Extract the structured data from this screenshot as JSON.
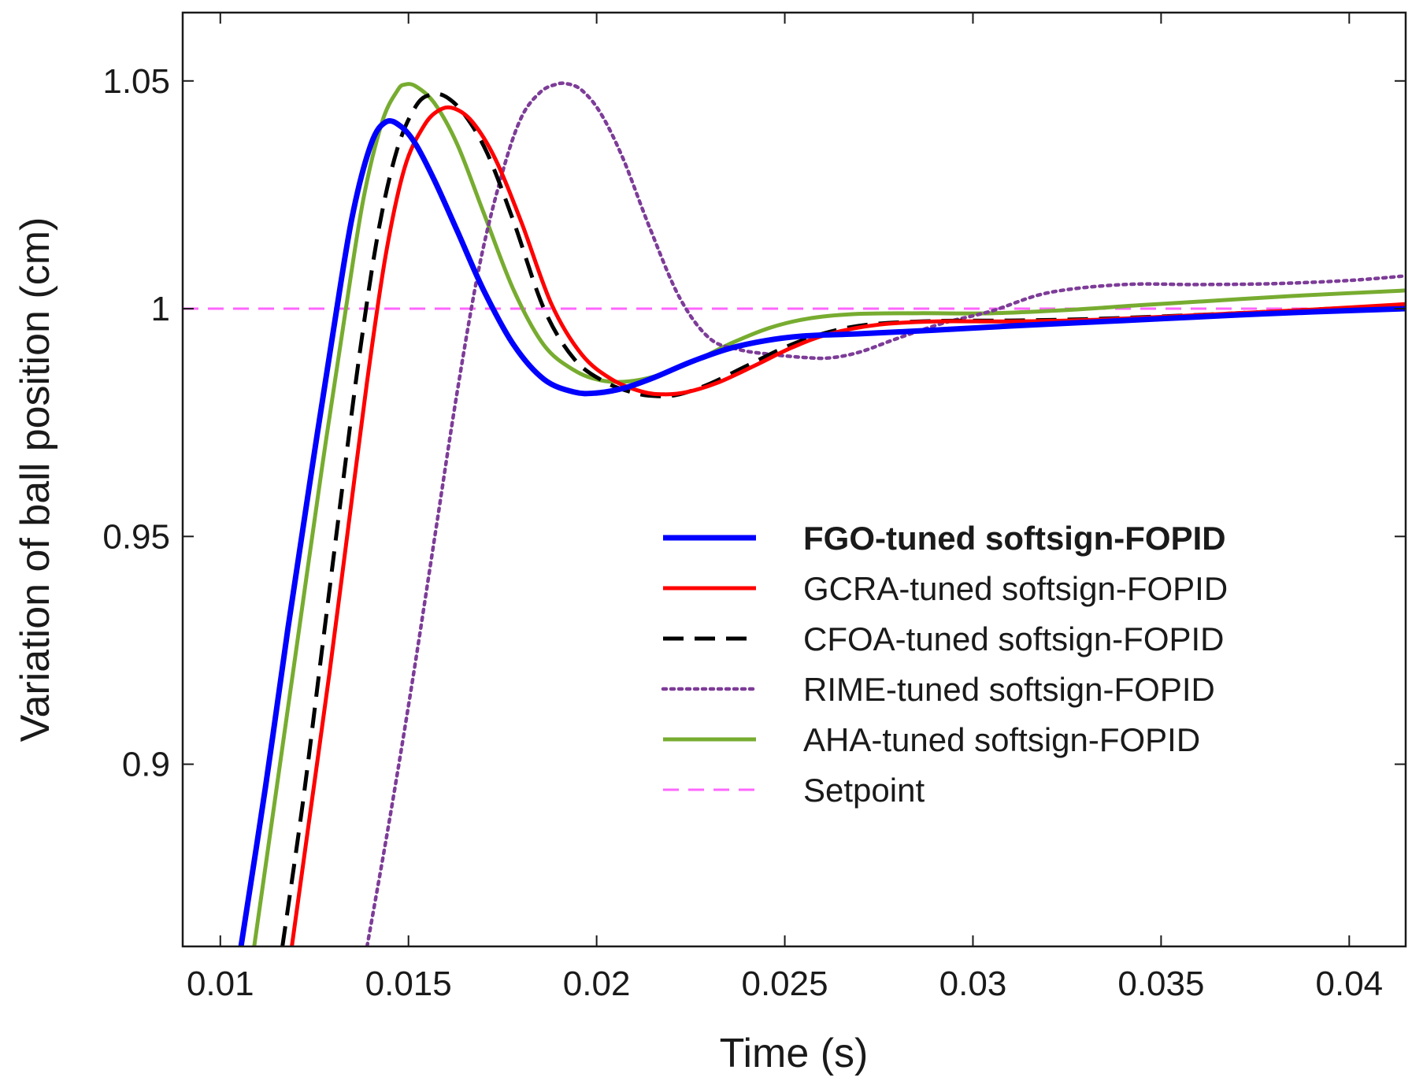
{
  "chart_data": {
    "type": "line",
    "title": "",
    "xlabel": "Time (s)",
    "ylabel": "Variation of ball position (cm)",
    "xlim": [
      0.009,
      0.0415
    ],
    "ylim": [
      0.86,
      1.065
    ],
    "xticks": [
      0.01,
      0.015,
      0.02,
      0.025,
      0.03,
      0.035,
      0.04
    ],
    "xtick_labels": [
      "0.01",
      "0.015",
      "0.02",
      "0.025",
      "0.03",
      "0.035",
      "0.04"
    ],
    "yticks": [
      0.9,
      0.95,
      1.0,
      1.05
    ],
    "ytick_labels": [
      "0.9",
      "0.95",
      "1",
      "1.05"
    ],
    "grid": false,
    "legend_position": "center-right",
    "series": [
      {
        "name": "FGO-tuned softsign-FOPID",
        "color": "#0000ff",
        "dash": "solid",
        "bold_label": true,
        "x": [
          0.01055,
          0.0112,
          0.0118,
          0.0124,
          0.013,
          0.0135,
          0.014,
          0.0144,
          0.0148,
          0.0152,
          0.0157,
          0.0163,
          0.017,
          0.0178,
          0.0186,
          0.0194,
          0.02,
          0.0207,
          0.0215,
          0.0225,
          0.0235,
          0.0245,
          0.0255,
          0.027,
          0.029,
          0.031,
          0.033,
          0.035,
          0.037,
          0.039,
          0.0415
        ],
        "y": [
          0.86,
          0.895,
          0.93,
          0.963,
          0.995,
          1.02,
          1.036,
          1.041,
          1.04,
          1.036,
          1.028,
          1.017,
          1.004,
          0.992,
          0.9845,
          0.9817,
          0.9815,
          0.9825,
          0.9848,
          0.9883,
          0.9912,
          0.993,
          0.994,
          0.9945,
          0.9953,
          0.9962,
          0.997,
          0.9978,
          0.9986,
          0.9993,
          1.0
        ]
      },
      {
        "name": "GCRA-tuned softsign-FOPID",
        "color": "#ff0000",
        "dash": "solid",
        "bold_label": false,
        "x": [
          0.0119,
          0.0124,
          0.0129,
          0.0134,
          0.0139,
          0.0144,
          0.0149,
          0.0154,
          0.0158,
          0.0162,
          0.0167,
          0.0173,
          0.018,
          0.0188,
          0.0196,
          0.0204,
          0.0212,
          0.0218,
          0.0224,
          0.0232,
          0.0242,
          0.0252,
          0.0262,
          0.0275,
          0.029,
          0.031,
          0.033,
          0.035,
          0.037,
          0.039,
          0.0415
        ],
        "y": [
          0.86,
          0.89,
          0.92,
          0.952,
          0.984,
          1.012,
          1.031,
          1.04,
          1.0435,
          1.044,
          1.041,
          1.033,
          1.019,
          1.001,
          0.99,
          0.9845,
          0.9818,
          0.9812,
          0.9817,
          0.9837,
          0.9875,
          0.9915,
          0.9945,
          0.9965,
          0.9972,
          0.9972,
          0.9975,
          0.9982,
          0.999,
          0.9998,
          1.001
        ]
      },
      {
        "name": "CFOA-tuned softsign-FOPID",
        "color": "#000000",
        "dash": "long-dash",
        "bold_label": false,
        "x": [
          0.01165,
          0.0122,
          0.0127,
          0.0132,
          0.0137,
          0.0142,
          0.0147,
          0.0152,
          0.0156,
          0.016,
          0.0165,
          0.0171,
          0.0178,
          0.0186,
          0.0194,
          0.0202,
          0.021,
          0.0216,
          0.0222,
          0.023,
          0.024,
          0.025,
          0.026,
          0.0272,
          0.029,
          0.031,
          0.033,
          0.035,
          0.037,
          0.039,
          0.0415
        ],
        "y": [
          0.86,
          0.892,
          0.925,
          0.958,
          0.99,
          1.017,
          1.035,
          1.0445,
          1.047,
          1.0465,
          1.0425,
          1.034,
          1.019,
          1.0,
          0.989,
          0.984,
          0.9815,
          0.9808,
          0.9812,
          0.9835,
          0.9875,
          0.9915,
          0.9945,
          0.9965,
          0.9973,
          0.9974,
          0.9977,
          0.9983,
          0.999,
          0.9998,
          1.0008
        ]
      },
      {
        "name": "RIME-tuned softsign-FOPID",
        "color": "#7d3c98",
        "dash": "dotted",
        "bold_label": false,
        "x": [
          0.0139,
          0.0145,
          0.0151,
          0.0157,
          0.0163,
          0.0169,
          0.0175,
          0.018,
          0.0185,
          0.0189,
          0.0192,
          0.0196,
          0.0201,
          0.0207,
          0.0214,
          0.0222,
          0.023,
          0.0238,
          0.0246,
          0.0255,
          0.0262,
          0.027,
          0.028,
          0.0292,
          0.0305,
          0.032,
          0.034,
          0.036,
          0.038,
          0.04,
          0.0415
        ],
        "y": [
          0.86,
          0.888,
          0.918,
          0.95,
          0.982,
          1.01,
          1.03,
          1.042,
          1.0475,
          1.0492,
          1.0494,
          1.048,
          1.043,
          1.033,
          1.018,
          1.0025,
          0.9935,
          0.991,
          0.99,
          0.9893,
          0.9892,
          0.9905,
          0.9935,
          0.9968,
          0.9995,
          1.0035,
          1.0053,
          1.0053,
          1.0055,
          1.0062,
          1.0072
        ]
      },
      {
        "name": "AHA-tuned softsign-FOPID",
        "color": "#77ac30",
        "dash": "solid",
        "bold_label": false,
        "x": [
          0.0109,
          0.0115,
          0.0121,
          0.0127,
          0.0133,
          0.0138,
          0.0143,
          0.0147,
          0.0149,
          0.0152,
          0.0157,
          0.0163,
          0.017,
          0.0178,
          0.0186,
          0.0194,
          0.0201,
          0.0208,
          0.0216,
          0.0226,
          0.0236,
          0.0246,
          0.0256,
          0.0268,
          0.0285,
          0.0305,
          0.0325,
          0.0345,
          0.0365,
          0.0385,
          0.0415
        ],
        "y": [
          0.86,
          0.895,
          0.93,
          0.965,
          0.998,
          1.024,
          1.041,
          1.0478,
          1.0492,
          1.0488,
          1.045,
          1.036,
          1.021,
          1.004,
          0.992,
          0.9865,
          0.9843,
          0.984,
          0.9853,
          0.9885,
          0.9925,
          0.9958,
          0.9978,
          0.9988,
          0.999,
          0.999,
          0.9997,
          1.0008,
          1.0018,
          1.0028,
          1.004
        ]
      },
      {
        "name": "Setpoint",
        "color": "#ff66ff",
        "dash": "dashed",
        "bold_label": false,
        "x": [
          0.009,
          0.0415
        ],
        "y": [
          1.0,
          1.0
        ]
      }
    ]
  }
}
